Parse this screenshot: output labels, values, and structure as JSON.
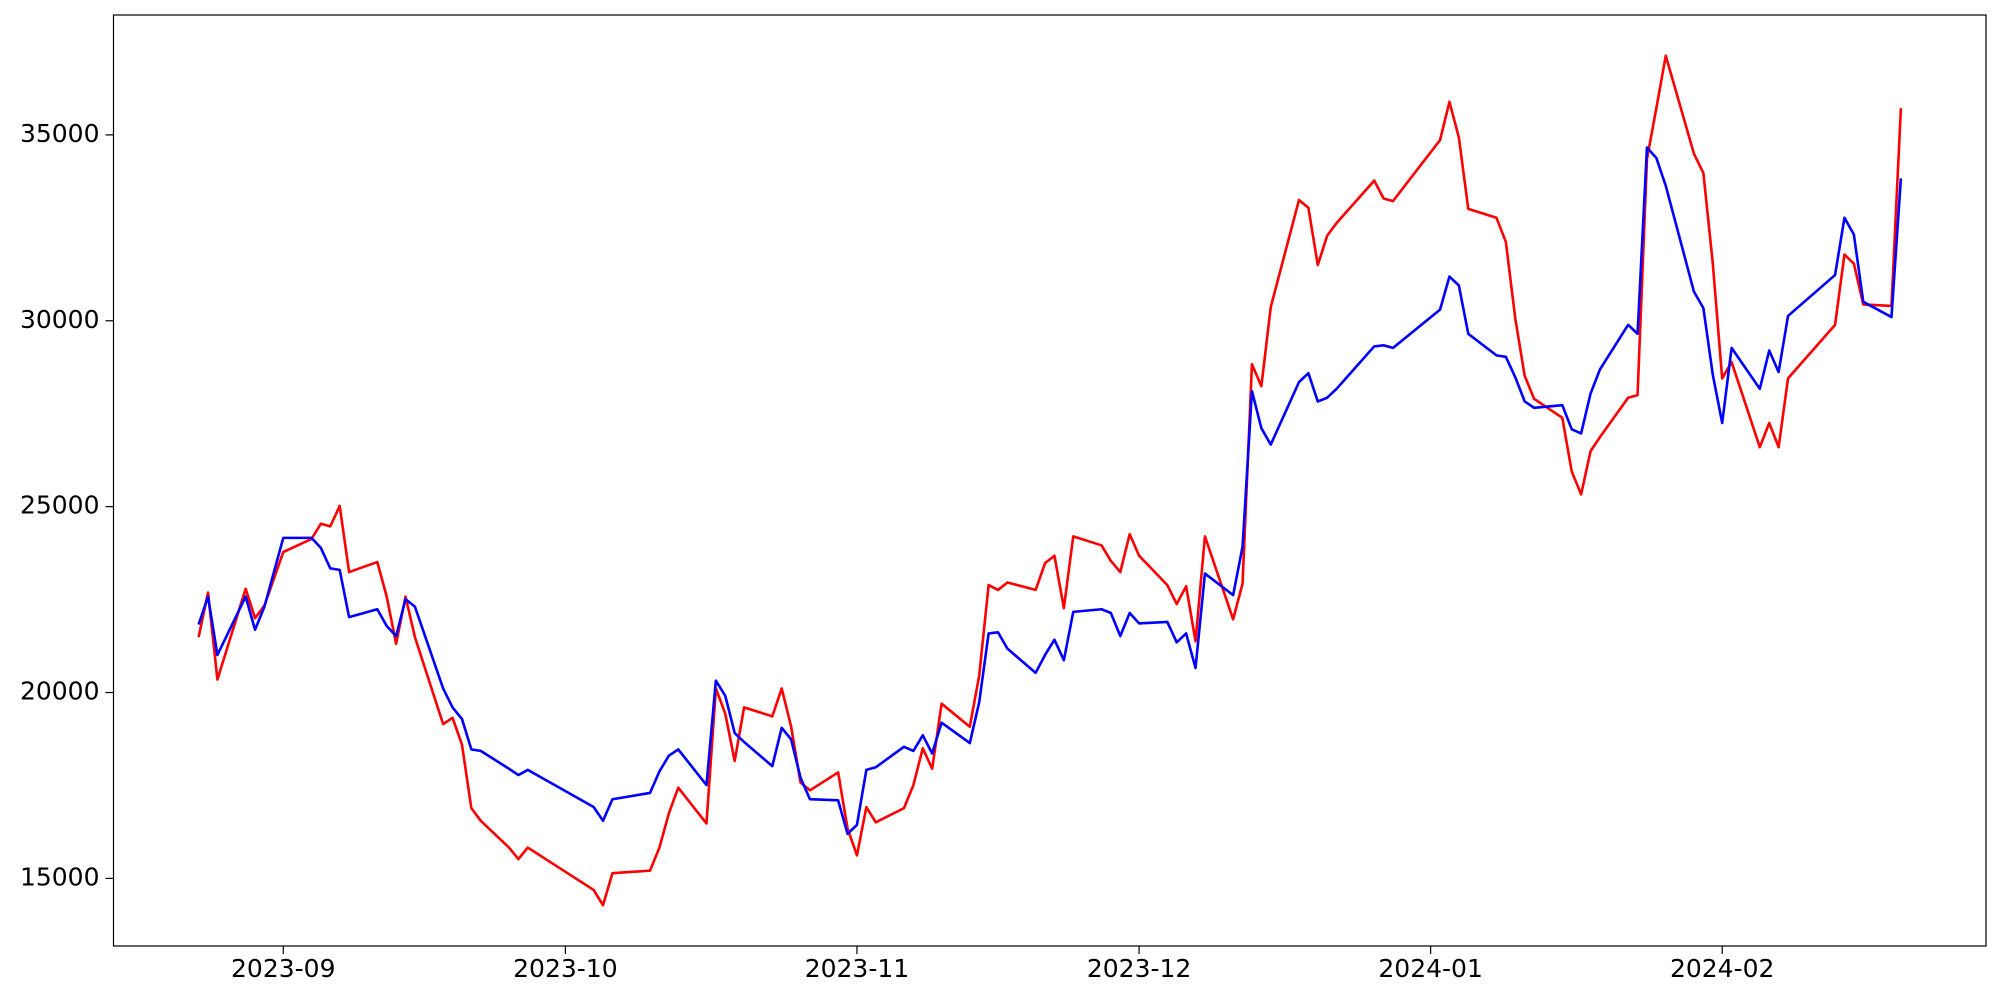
{
  "chart_data": {
    "type": "line",
    "x": [
      19592,
      19593,
      19594,
      19597,
      19598,
      19599,
      19601,
      19604,
      19605,
      19606,
      19607,
      19608,
      19611,
      19612,
      19613,
      19614,
      19615,
      19618,
      19619,
      19620,
      19621,
      19622,
      19625,
      19626,
      19627,
      19634,
      19635,
      19636,
      19640,
      19641,
      19642,
      19643,
      19646,
      19647,
      19648,
      19649,
      19650,
      19653,
      19654,
      19655,
      19656,
      19657,
      19660,
      19661,
      19662,
      19663,
      19664,
      19667,
      19668,
      19669,
      19670,
      19671,
      19674,
      19675,
      19676,
      19677,
      19678,
      19681,
      19682,
      19683,
      19684,
      19685,
      19688,
      19689,
      19690,
      19691,
      19692,
      19695,
      19696,
      19697,
      19698,
      19699,
      19702,
      19703,
      19704,
      19705,
      19706,
      19709,
      19710,
      19711,
      19712,
      19713,
      19717,
      19718,
      19719,
      19724,
      19725,
      19726,
      19727,
      19730,
      19731,
      19732,
      19733,
      19734,
      19737,
      19738,
      19739,
      19740,
      19741,
      19744,
      19745,
      19746,
      19747,
      19748,
      19751,
      19752,
      19753,
      19754,
      19755,
      19758,
      19759,
      19760,
      19761,
      19766,
      19767,
      19768,
      19769,
      19772,
      19773
    ],
    "series": [
      {
        "color": "#ff0000",
        "values": [
          21490,
          22690,
          20350,
          22790,
          22000,
          22340,
          23780,
          24130,
          24540,
          24470,
          25020,
          23240,
          23510,
          22580,
          21310,
          22580,
          21490,
          19150,
          19320,
          18600,
          16890,
          16550,
          15830,
          15520,
          15830,
          14690,
          14280,
          15140,
          15210,
          15830,
          16750,
          17440,
          16480,
          20110,
          19430,
          18160,
          19600,
          19360,
          20110,
          19080,
          17580,
          17370,
          17850,
          16340,
          15620,
          16920,
          16510,
          16890,
          17510,
          18500,
          17950,
          19700,
          19080,
          20460,
          22890,
          22760,
          22960,
          22760,
          23480,
          23680,
          22270,
          24200,
          23960,
          23540,
          23240,
          24260,
          23680,
          22890,
          22380,
          22860,
          21380,
          24200,
          21970,
          22930,
          28830,
          28240,
          30370,
          33250,
          33040,
          31500,
          32290,
          32630,
          33770,
          33290,
          33220,
          34860,
          35890,
          34930,
          33010,
          32770,
          32120,
          30060,
          28520,
          27900,
          27390,
          25950,
          25330,
          26490,
          26870,
          27930,
          28000,
          34350,
          35720,
          37130,
          34490,
          33970,
          31540,
          28450,
          28890,
          26600,
          27250,
          26600,
          28450,
          29890,
          31780,
          31540,
          30440,
          30400,
          35720
        ]
      },
      {
        "color": "#0000ff",
        "values": [
          21830,
          22580,
          21010,
          22580,
          21690,
          22310,
          24160,
          24160,
          23890,
          23340,
          23300,
          22030,
          22240,
          21790,
          21520,
          22510,
          22310,
          20110,
          19600,
          19290,
          18470,
          18430,
          17950,
          17780,
          17920,
          16920,
          16550,
          17130,
          17300,
          17880,
          18300,
          18470,
          17510,
          20320,
          19910,
          18910,
          18670,
          18020,
          19050,
          18740,
          17710,
          17130,
          17100,
          16200,
          16440,
          17920,
          17990,
          18540,
          18430,
          18850,
          18360,
          19190,
          18640,
          19740,
          21590,
          21620,
          21180,
          20530,
          21010,
          21420,
          20870,
          22170,
          22240,
          22140,
          21520,
          22140,
          21860,
          21900,
          21350,
          21590,
          20660,
          23200,
          22620,
          23920,
          28110,
          27110,
          26670,
          28350,
          28590,
          27830,
          27930,
          28170,
          29310,
          29340,
          29270,
          30300,
          31190,
          30950,
          29650,
          29070,
          29030,
          28480,
          27830,
          27660,
          27730,
          27080,
          26970,
          28040,
          28690,
          29890,
          29650,
          34660,
          34380,
          33630,
          30780,
          30340,
          28550,
          27250,
          29270,
          28170,
          29200,
          28620,
          30130,
          31230,
          32770,
          32320,
          30510,
          30100,
          33830
        ]
      }
    ],
    "xlim": [
      19582.95,
      19782.05
    ],
    "xticks": [
      {
        "value": 19601,
        "label": "2023-09"
      },
      {
        "value": 19631,
        "label": "2023-10"
      },
      {
        "value": 19662,
        "label": "2023-11"
      },
      {
        "value": 19692,
        "label": "2023-12"
      },
      {
        "value": 19723,
        "label": "2024-01"
      },
      {
        "value": 19754,
        "label": "2024-02"
      }
    ],
    "ylim": [
      13182,
      38225
    ],
    "yticks": [
      15000,
      20000,
      25000,
      30000,
      35000
    ],
    "grid": false
  }
}
